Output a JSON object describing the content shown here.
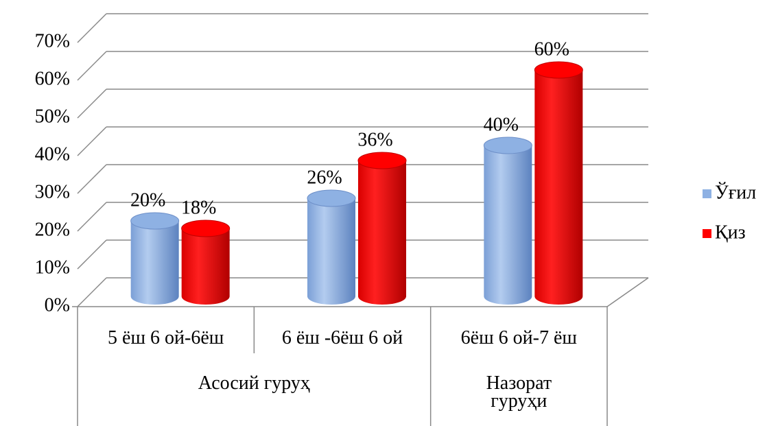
{
  "chart_data": {
    "type": "bar3d",
    "categories": [
      "5 ёш 6 ой-6ёш",
      "6 ёш -6ёш 6 ой",
      "6ёш 6 ой-7 ёш"
    ],
    "groups": [
      "Асосий гуруҳ",
      "Назорат гуруҳи"
    ],
    "series": [
      {
        "name": "Ўғил",
        "color": "#8eb1e3",
        "values": [
          20,
          26,
          40
        ],
        "value_labels": [
          "20%",
          "26%",
          "40%"
        ]
      },
      {
        "name": "Қиз",
        "color": "#ff0000",
        "values": [
          18,
          36,
          60
        ],
        "value_labels": [
          "18%",
          "36%",
          "60%"
        ]
      }
    ],
    "ylim": [
      0,
      70
    ],
    "yticks": [
      {
        "value": 0,
        "label": "0%"
      },
      {
        "value": 10,
        "label": "10%"
      },
      {
        "value": 20,
        "label": "20%"
      },
      {
        "value": 30,
        "label": "30%"
      },
      {
        "value": 40,
        "label": "40%"
      },
      {
        "value": 50,
        "label": "50%"
      },
      {
        "value": 60,
        "label": "60%"
      },
      {
        "value": 70,
        "label": "70%"
      }
    ],
    "grid": true,
    "legend": "right"
  }
}
